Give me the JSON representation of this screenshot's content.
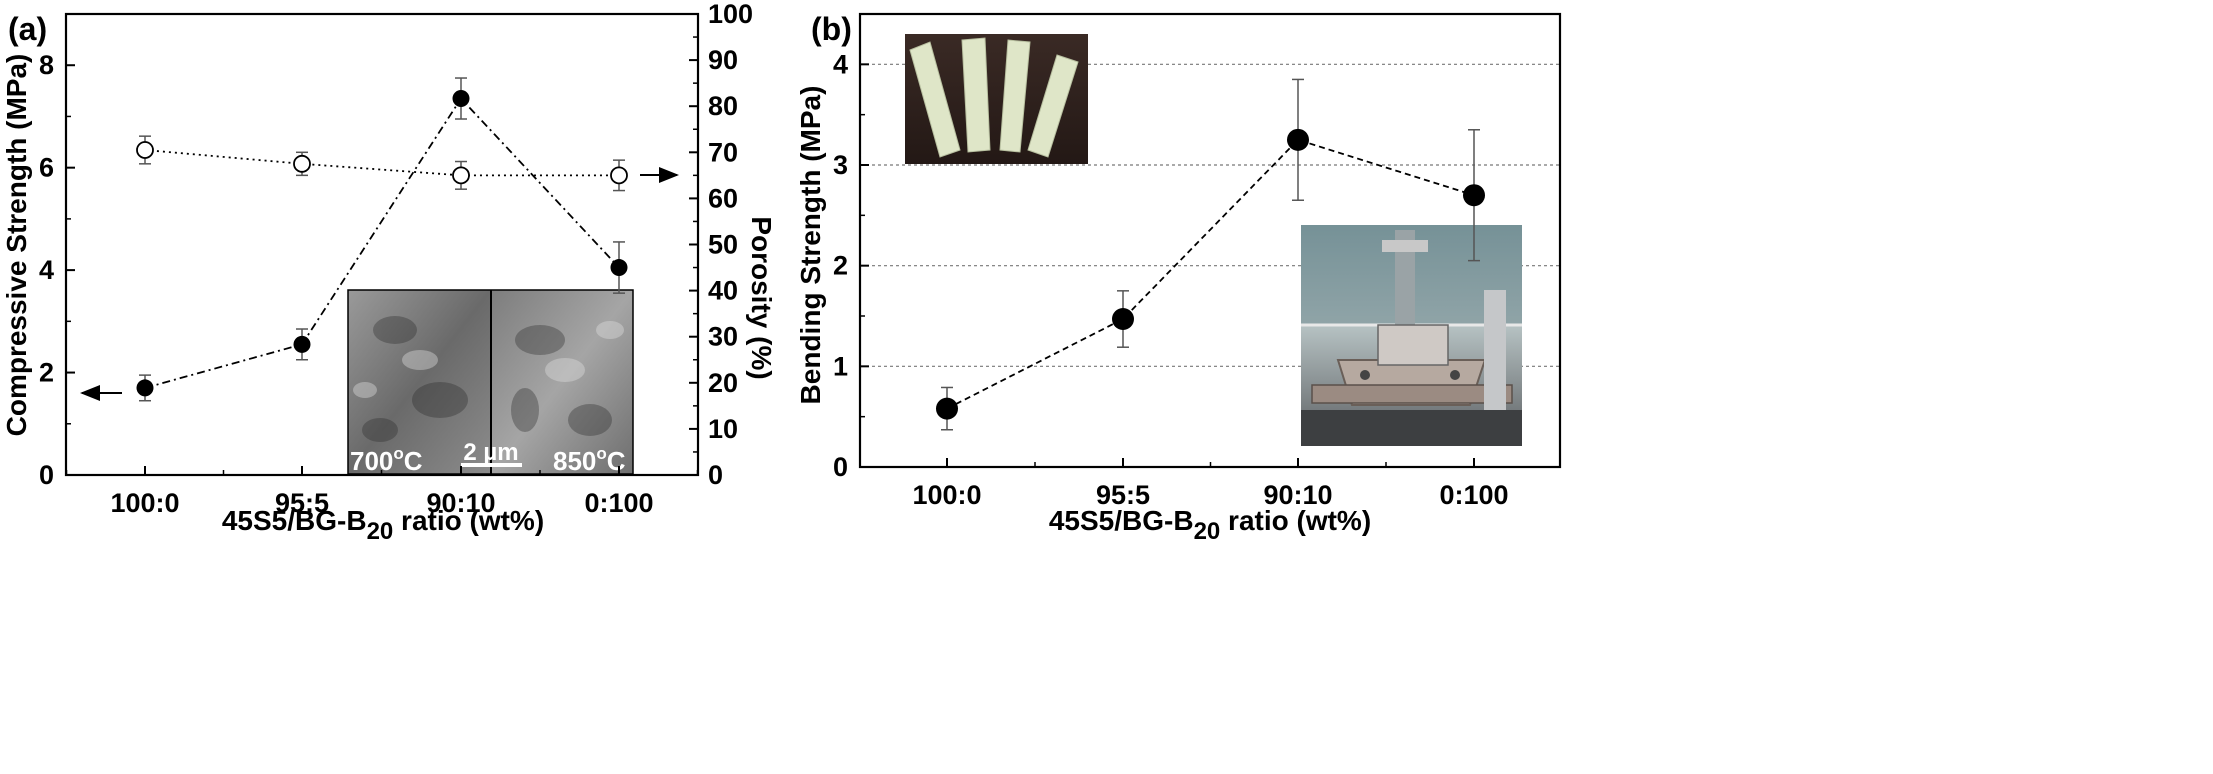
{
  "chart_data": [
    {
      "type": "line",
      "panel_label": "(a)",
      "categories": [
        "100:0",
        "95:5",
        "90:10",
        "0:100"
      ],
      "xlabel": {
        "prefix": "45S5/BG-B",
        "sub": "20",
        "suffix": " ratio (wt%)"
      },
      "ylabel": "Compressive Strength (MPa)",
      "ylim": [
        0,
        9
      ],
      "yticks": [
        "0",
        "2",
        "4",
        "6",
        "8"
      ],
      "y2label": "Porosity (%)",
      "y2lim": [
        0,
        100
      ],
      "y2ticks": [
        "0",
        "10",
        "20",
        "30",
        "40",
        "50",
        "60",
        "70",
        "80",
        "90",
        "100"
      ],
      "series": [
        {
          "axis": "left",
          "marker": "filled-circle",
          "line": "dash-dot",
          "values": [
            1.7,
            2.55,
            7.35,
            4.05
          ],
          "errors": [
            0.25,
            0.3,
            0.4,
            0.5
          ]
        },
        {
          "axis": "right",
          "marker": "open-circle",
          "line": "dotted",
          "values": [
            70.5,
            67.5,
            65,
            65
          ],
          "errors": [
            3,
            2.5,
            3,
            3.3
          ]
        }
      ],
      "inset_labels": [
        "700",
        "o",
        "C",
        "2 µm",
        "850",
        "o",
        "C"
      ],
      "legend": "none",
      "grid": false
    },
    {
      "type": "line",
      "panel_label": "(b)",
      "categories": [
        "100:0",
        "95:5",
        "90:10",
        "0:100"
      ],
      "xlabel": {
        "prefix": "45S5/BG-B",
        "sub": "20",
        "suffix": " ratio (wt%)"
      },
      "ylabel": "Bending Strength (MPa)",
      "ylim": [
        0,
        4.5
      ],
      "yticks": [
        "0",
        "1",
        "2",
        "3",
        "4"
      ],
      "series": [
        {
          "axis": "left",
          "marker": "filled-circle",
          "line": "dashed",
          "values": [
            0.58,
            1.47,
            3.25,
            2.7
          ],
          "errors": [
            0.21,
            0.28,
            0.6,
            0.65
          ]
        }
      ],
      "legend": "none",
      "grid": true
    }
  ]
}
